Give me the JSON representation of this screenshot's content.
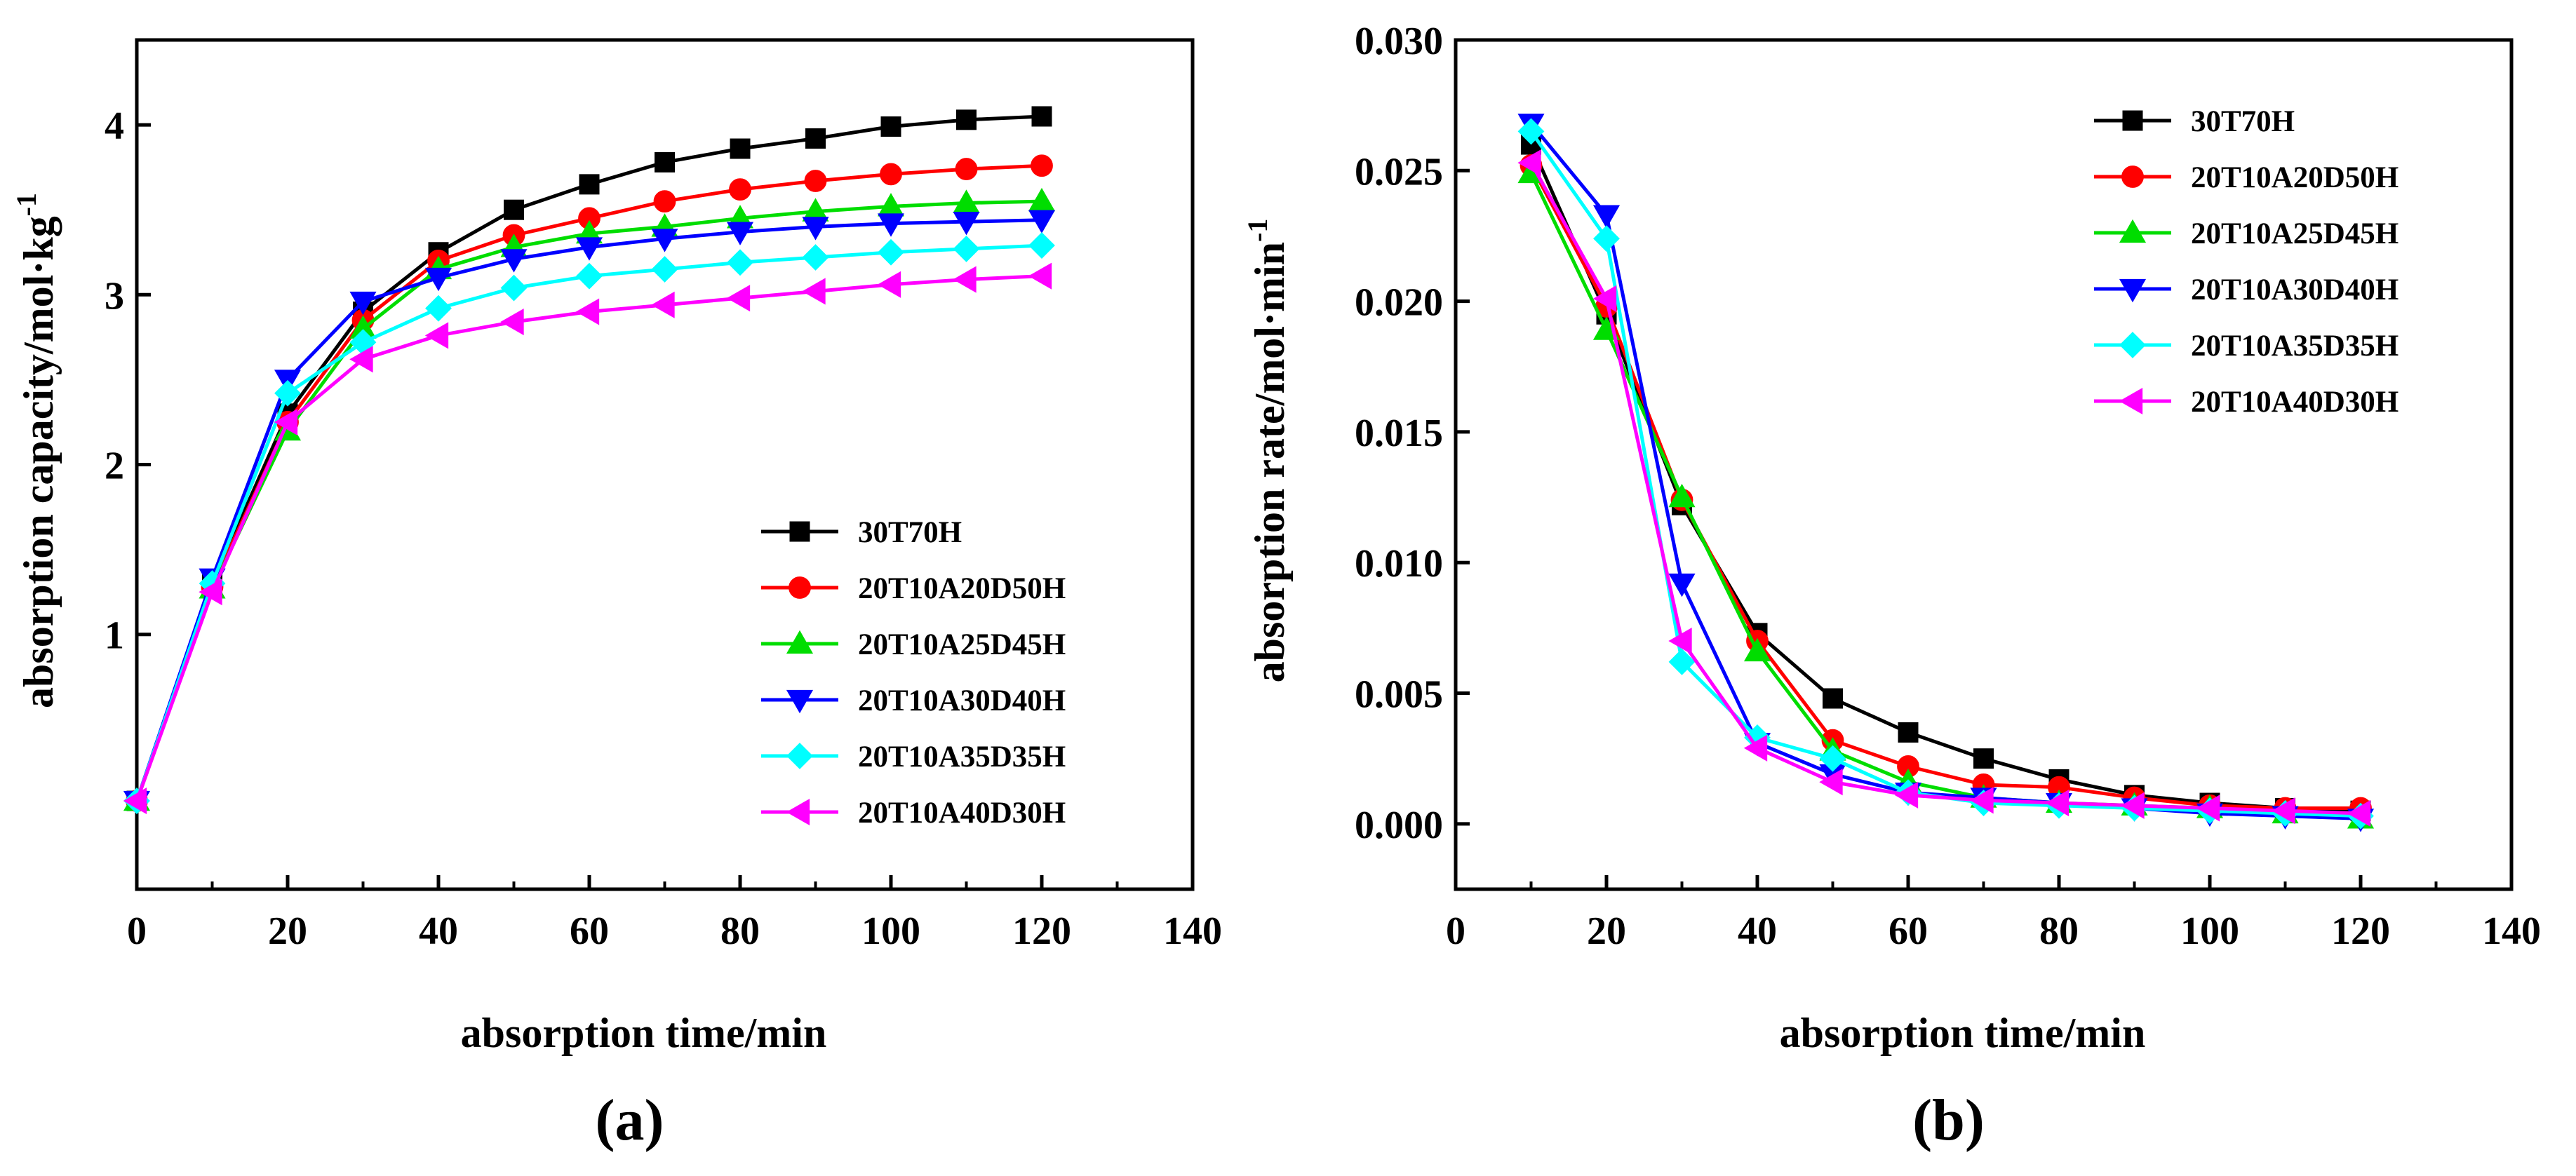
{
  "chart_data": [
    {
      "panel": "(a)",
      "type": "line",
      "xlabel": "absorption time/min",
      "ylabel": "absorption capacity/mol·kg-1",
      "ylabel_main": "absorption capacity/mol·kg",
      "ylabel_sup": "-1",
      "xlim": [
        0,
        140
      ],
      "ylim": [
        -0.5,
        4.5
      ],
      "xticks": [
        0,
        20,
        40,
        60,
        80,
        100,
        120,
        140
      ],
      "yticks": [
        1,
        2,
        3,
        4
      ],
      "grid": false,
      "legend_position": "bottom-right",
      "x": [
        0,
        10,
        20,
        30,
        40,
        50,
        60,
        70,
        80,
        90,
        100,
        110,
        120
      ],
      "series": [
        {
          "name": "30T70H",
          "color": "#000000",
          "marker": "square",
          "values": [
            0.02,
            1.3,
            2.3,
            2.9,
            3.25,
            3.5,
            3.65,
            3.78,
            3.86,
            3.92,
            3.99,
            4.03,
            4.05
          ]
        },
        {
          "name": "20T10A20D50H",
          "color": "#ff0000",
          "marker": "circle",
          "values": [
            0.02,
            1.28,
            2.25,
            2.85,
            3.2,
            3.35,
            3.45,
            3.55,
            3.62,
            3.67,
            3.71,
            3.74,
            3.76
          ]
        },
        {
          "name": "20T10A25D45H",
          "color": "#00dd00",
          "marker": "triangle-up",
          "values": [
            0.02,
            1.27,
            2.2,
            2.8,
            3.15,
            3.28,
            3.36,
            3.4,
            3.45,
            3.49,
            3.52,
            3.54,
            3.55
          ]
        },
        {
          "name": "20T10A30D40H",
          "color": "#0000ff",
          "marker": "triangle-down",
          "values": [
            0.02,
            1.33,
            2.5,
            2.96,
            3.1,
            3.21,
            3.28,
            3.33,
            3.37,
            3.4,
            3.42,
            3.43,
            3.44
          ]
        },
        {
          "name": "20T10A35D35H",
          "color": "#00ffff",
          "marker": "diamond",
          "values": [
            0.02,
            1.3,
            2.42,
            2.72,
            2.92,
            3.04,
            3.11,
            3.15,
            3.19,
            3.22,
            3.25,
            3.27,
            3.29
          ]
        },
        {
          "name": "20T10A40D30H",
          "color": "#ff00ff",
          "marker": "triangle-left",
          "values": [
            0.02,
            1.25,
            2.25,
            2.62,
            2.76,
            2.84,
            2.9,
            2.94,
            2.98,
            3.02,
            3.06,
            3.09,
            3.11
          ]
        }
      ]
    },
    {
      "panel": "(b)",
      "type": "line",
      "xlabel": "absorption time/min",
      "ylabel": "absorption rate/mol·min-1",
      "ylabel_main": "absorption rate/mol·min",
      "ylabel_sup": "-1",
      "xlim": [
        0,
        140
      ],
      "ylim": [
        -0.0025,
        0.03
      ],
      "xticks": [
        0,
        20,
        40,
        60,
        80,
        100,
        120,
        140
      ],
      "yticks": [
        "0.000",
        "0.005",
        "0.010",
        "0.015",
        "0.020",
        "0.025",
        "0.030"
      ],
      "grid": false,
      "legend_position": "top-right",
      "x": [
        10,
        20,
        30,
        40,
        50,
        60,
        70,
        80,
        90,
        100,
        110,
        120
      ],
      "series": [
        {
          "name": "30T70H",
          "color": "#000000",
          "marker": "square",
          "values": [
            0.026,
            0.0195,
            0.0122,
            0.0073,
            0.0048,
            0.0035,
            0.0025,
            0.0017,
            0.0011,
            0.0008,
            0.0006,
            0.0005
          ]
        },
        {
          "name": "20T10A20D50H",
          "color": "#ff0000",
          "marker": "circle",
          "values": [
            0.0252,
            0.0198,
            0.0124,
            0.007,
            0.0032,
            0.0022,
            0.0015,
            0.0014,
            0.001,
            0.0007,
            0.0006,
            0.0006
          ]
        },
        {
          "name": "20T10A25D45H",
          "color": "#00dd00",
          "marker": "triangle-up",
          "values": [
            0.0249,
            0.0189,
            0.0125,
            0.0066,
            0.0028,
            0.0016,
            0.001,
            0.0008,
            0.0007,
            0.0006,
            0.0004,
            0.0002
          ]
        },
        {
          "name": "20T10A30D40H",
          "color": "#0000ff",
          "marker": "triangle-down",
          "values": [
            0.0268,
            0.0233,
            0.0092,
            0.0031,
            0.0019,
            0.0012,
            0.001,
            0.0008,
            0.0006,
            0.0004,
            0.0003,
            0.0002
          ]
        },
        {
          "name": "20T10A35D35H",
          "color": "#00ffff",
          "marker": "diamond",
          "values": [
            0.0265,
            0.0224,
            0.0062,
            0.0033,
            0.0025,
            0.0012,
            0.0008,
            0.0007,
            0.0006,
            0.0005,
            0.0004,
            0.0003
          ]
        },
        {
          "name": "20T10A40D30H",
          "color": "#ff00ff",
          "marker": "triangle-left",
          "values": [
            0.0253,
            0.0201,
            0.007,
            0.0029,
            0.0016,
            0.0011,
            0.0009,
            0.0008,
            0.0007,
            0.0006,
            0.0005,
            0.0004
          ]
        }
      ]
    }
  ]
}
